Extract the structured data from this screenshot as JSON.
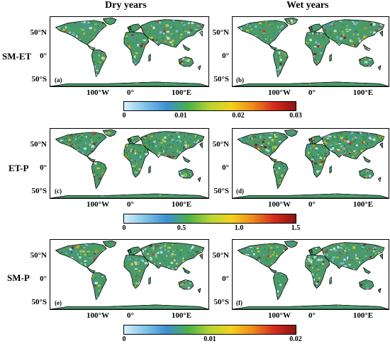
{
  "figure": {
    "columns": [
      "Dry years",
      "Wet years"
    ],
    "latitude_labels": [
      "50°N",
      "0°",
      "50°S"
    ],
    "longitude_labels": [
      "100°W",
      "0°",
      "100°E"
    ],
    "rows": [
      {
        "label": "SM-ET",
        "panels": [
          "(a)",
          "(b)"
        ],
        "colorbar": {
          "ticks": [
            "0",
            "0.01",
            "0.02",
            "0.03"
          ],
          "range": [
            0,
            0.03
          ]
        }
      },
      {
        "label": "ET-P",
        "panels": [
          "(c)",
          "(d)"
        ],
        "colorbar": {
          "ticks": [
            "0",
            "0.5",
            "1.0",
            "1.5"
          ],
          "range": [
            0,
            1.5
          ]
        }
      },
      {
        "label": "SM-P",
        "panels": [
          "(e)",
          "(f)"
        ],
        "colorbar": {
          "ticks": [
            "0",
            "0.01",
            "0.02"
          ],
          "range": [
            0,
            0.02
          ]
        }
      }
    ],
    "colormap": [
      "#d9f0fb",
      "#7ec3ea",
      "#3d8fd1",
      "#4bb04a",
      "#b8d432",
      "#f2d21d",
      "#f08a1c",
      "#d42b1e",
      "#8b1511"
    ],
    "land_color": "#4a9a6a",
    "coast_color": "#000000"
  }
}
